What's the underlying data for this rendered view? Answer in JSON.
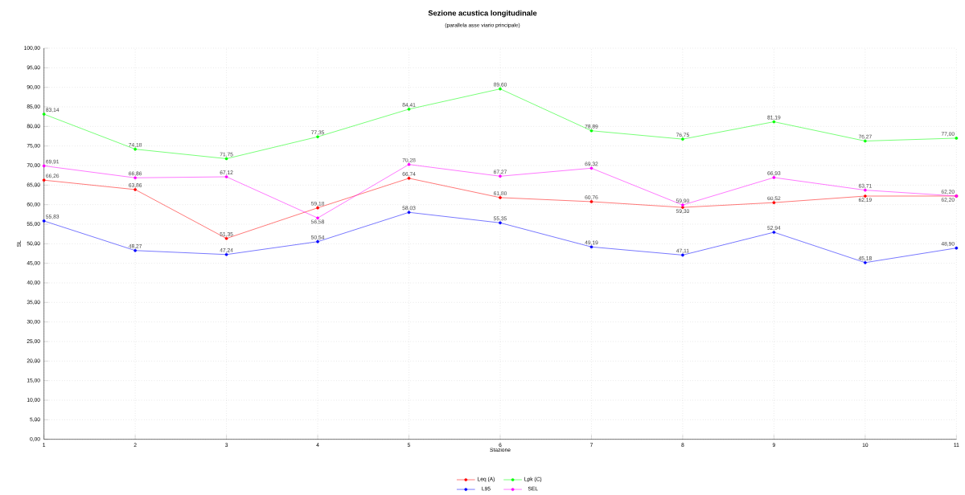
{
  "chart_data": {
    "type": "line",
    "title": "Sezione acustica longitudinale",
    "subtitle": "(parallela asse viario principale)",
    "xlabel": "Stazione",
    "ylabel": "SL",
    "x": [
      1,
      2,
      3,
      4,
      5,
      6,
      7,
      8,
      9,
      10,
      11
    ],
    "xlim": [
      1,
      11
    ],
    "xticks": [
      1,
      2,
      3,
      4,
      5,
      6,
      7,
      8,
      9,
      10,
      11
    ],
    "ylim": [
      0,
      100
    ],
    "yticks": [
      {
        "value": 0,
        "label": "0,00"
      },
      {
        "value": 5,
        "label": "5,00"
      },
      {
        "value": 10,
        "label": "10,00"
      },
      {
        "value": 15,
        "label": "15,00"
      },
      {
        "value": 20,
        "label": "20,00"
      },
      {
        "value": 25,
        "label": "25,00"
      },
      {
        "value": 30,
        "label": "30,00"
      },
      {
        "value": 35,
        "label": "35,00"
      },
      {
        "value": 40,
        "label": "40,00"
      },
      {
        "value": 45,
        "label": "45,00"
      },
      {
        "value": 50,
        "label": "50,00"
      },
      {
        "value": 55,
        "label": "55,00"
      },
      {
        "value": 60,
        "label": "60,00"
      },
      {
        "value": 65,
        "label": "65,00"
      },
      {
        "value": 70,
        "label": "70,00"
      },
      {
        "value": 75,
        "label": "75,00"
      },
      {
        "value": 80,
        "label": "80,00"
      },
      {
        "value": 85,
        "label": "85,00"
      },
      {
        "value": 90,
        "label": "90,00"
      },
      {
        "value": 95,
        "label": "95,00"
      },
      {
        "value": 100,
        "label": "100,00"
      }
    ],
    "grid": true,
    "legend": "bottom",
    "marker": "circle",
    "line_style": "solid",
    "series": [
      {
        "name": "Leq (A)",
        "color": "#ff0000",
        "values": [
          66.26,
          63.86,
          51.35,
          59.18,
          66.74,
          61.8,
          60.76,
          59.3,
          60.52,
          62.19,
          62.2
        ],
        "value_labels": [
          "66,26",
          "63,86",
          "51,35",
          "59,18",
          "66,74",
          "61,80",
          "60,76",
          "59,30",
          "60,52",
          "62,19",
          "62,20"
        ]
      },
      {
        "name": "Lpk (C)",
        "color": "#00ff00",
        "values": [
          83.14,
          74.18,
          71.75,
          77.35,
          84.41,
          89.6,
          78.89,
          76.75,
          81.19,
          76.27,
          77.0
        ],
        "value_labels": [
          "83,14",
          "74,18",
          "71,75",
          "77,35",
          "84,41",
          "89,60",
          "78,89",
          "76,75",
          "81,19",
          "76,27",
          "77,00"
        ]
      },
      {
        "name": "L95",
        "color": "#0000ff",
        "values": [
          55.83,
          48.27,
          47.24,
          50.54,
          58.03,
          55.35,
          49.19,
          47.11,
          52.94,
          45.18,
          48.9
        ],
        "value_labels": [
          "55,83",
          "48,27",
          "47,24",
          "50,54",
          "58,03",
          "55,35",
          "49,19",
          "47,11",
          "52,94",
          "45,18",
          "48,90"
        ]
      },
      {
        "name": "SEL",
        "color": "#ff00ff",
        "values": [
          69.91,
          66.86,
          67.12,
          56.58,
          70.28,
          67.27,
          69.32,
          59.9,
          66.93,
          63.71,
          62.2
        ],
        "value_labels": [
          "69,91",
          "66,86",
          "67,12",
          "56,58",
          "70,28",
          "67,27",
          "69,32",
          "59,90",
          "66,93",
          "63,71",
          "62,20"
        ]
      }
    ]
  }
}
